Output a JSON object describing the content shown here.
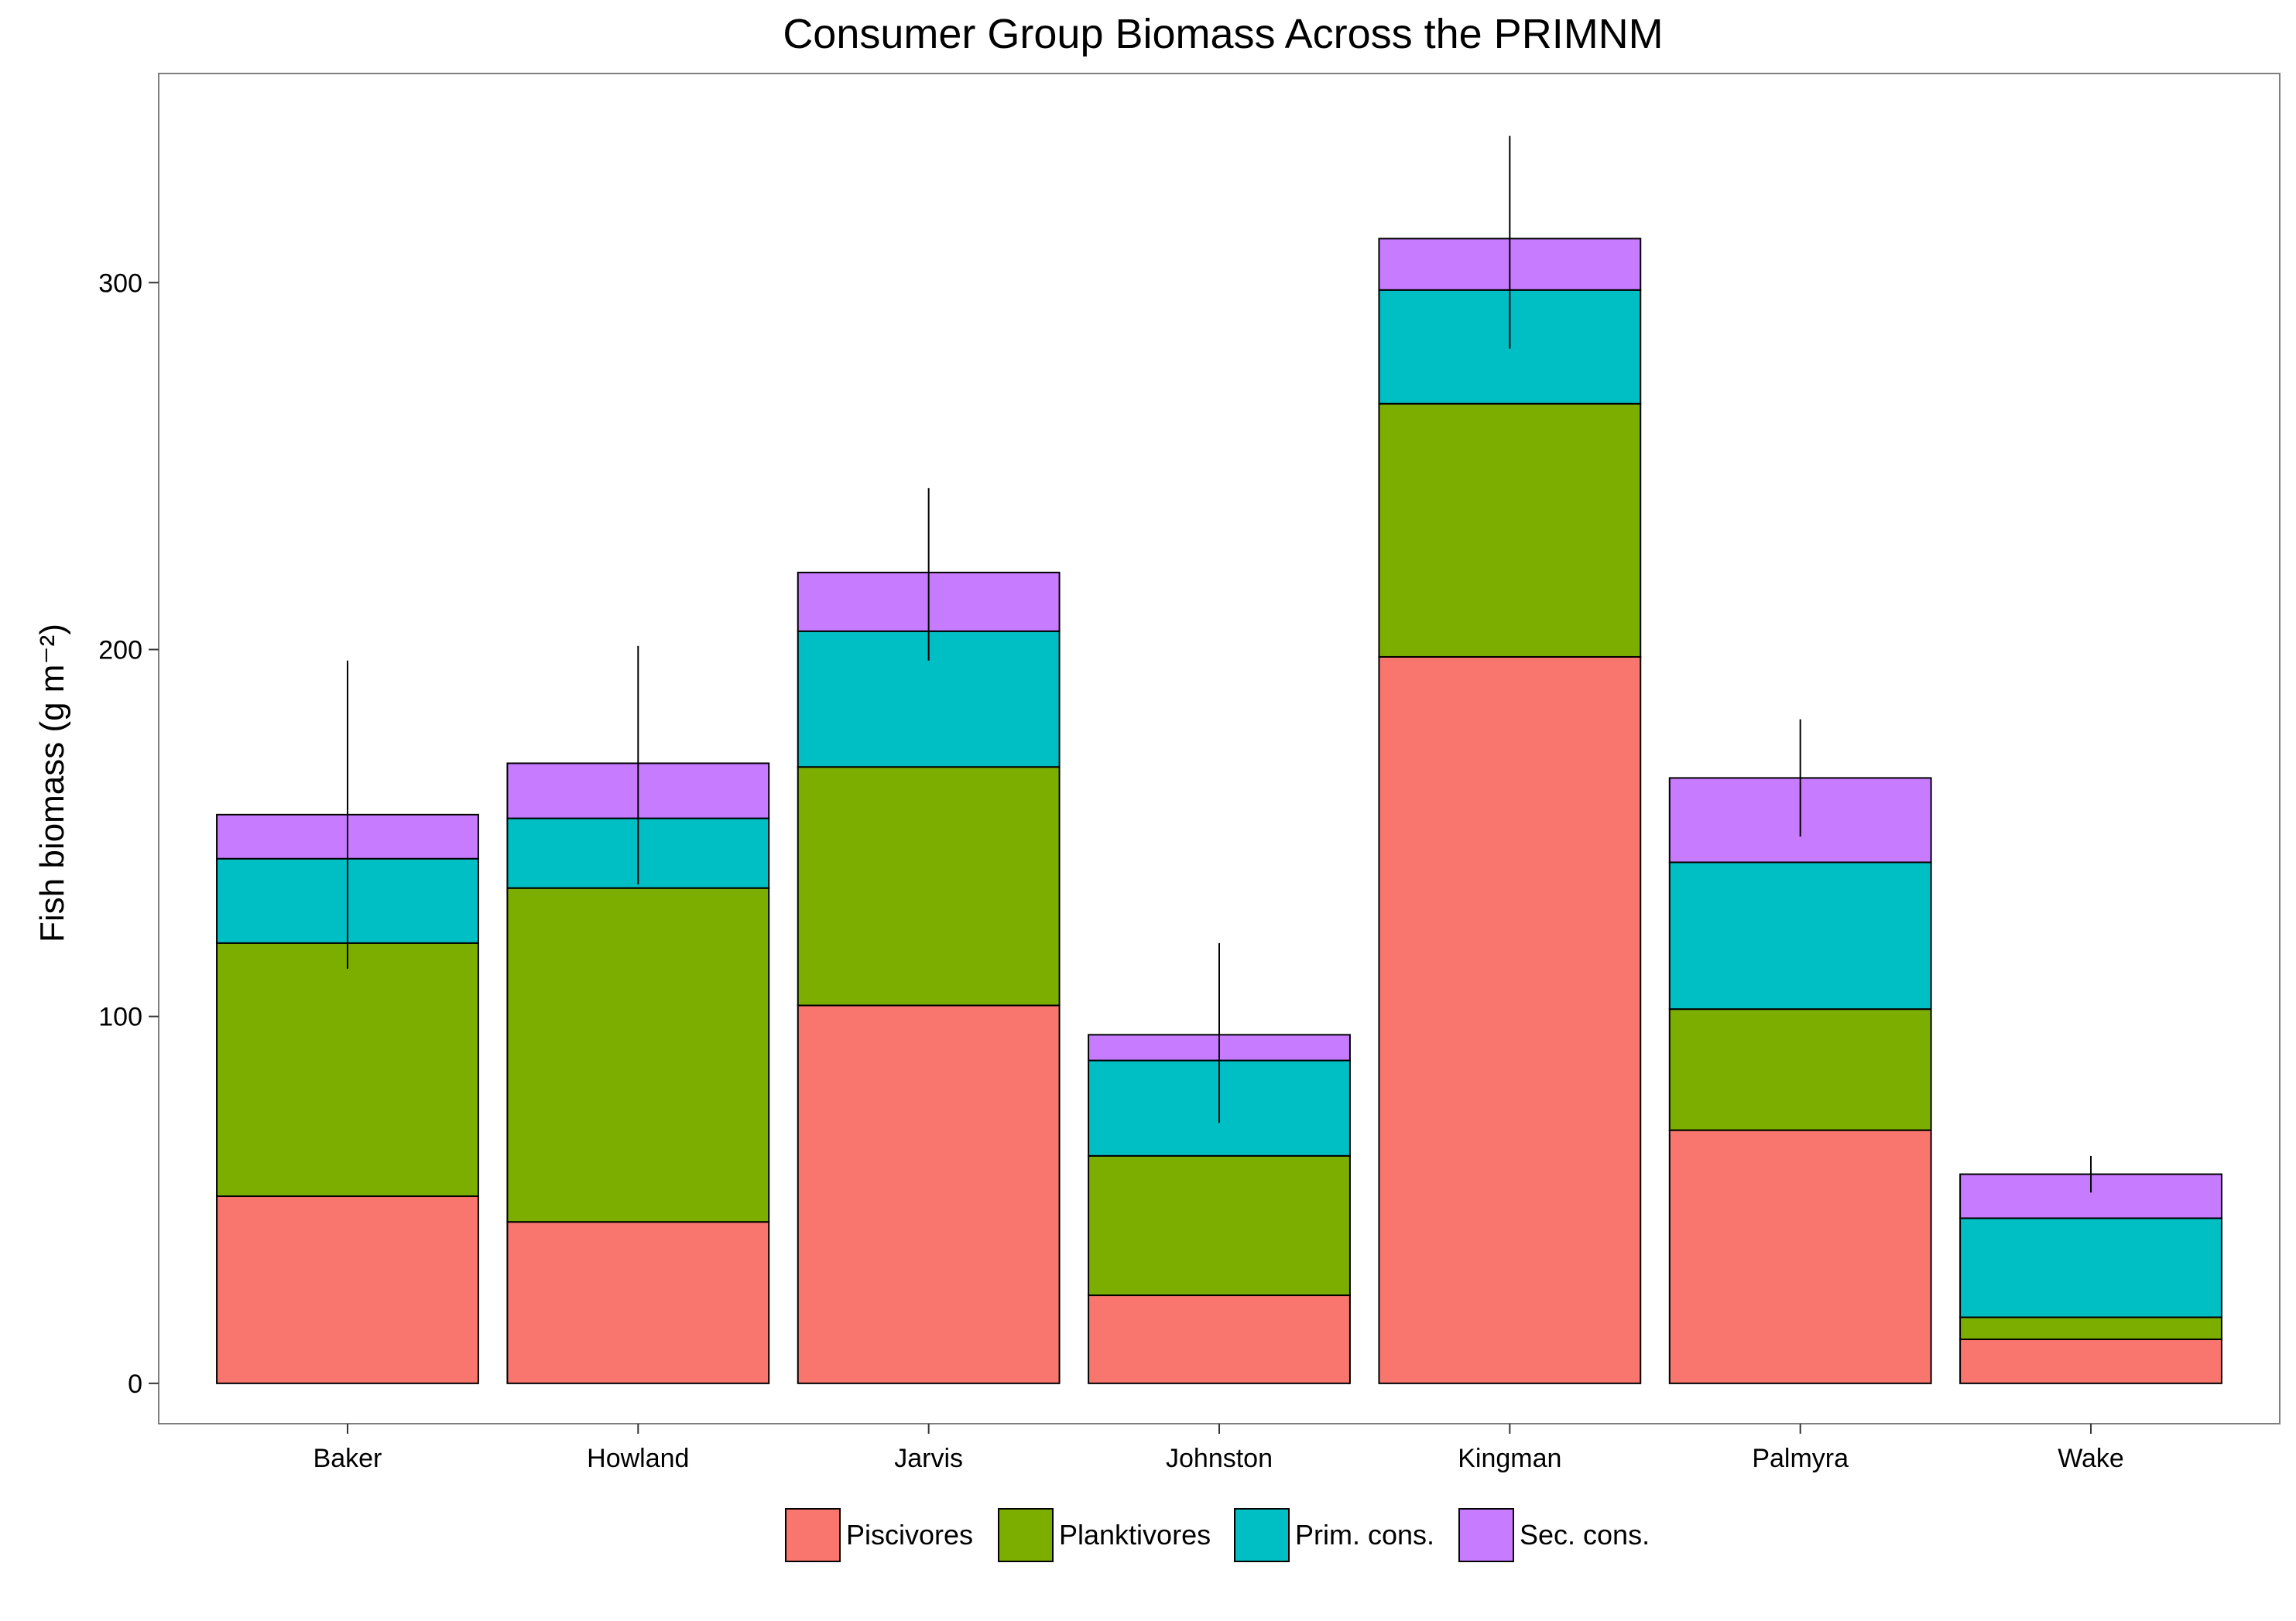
{
  "chart_data": {
    "type": "bar",
    "stacked": true,
    "title": "Consumer Group Biomass Across the PRIMNM",
    "xlabel": "",
    "ylabel": "Fish biomass (g m⁻²)",
    "ylim": [
      -11,
      357
    ],
    "yticks": [
      0,
      100,
      200,
      300
    ],
    "grid": false,
    "legend_position": "bottom",
    "categories": [
      "Baker",
      "Howland",
      "Jarvis",
      "Johnston",
      "Kingman",
      "Palmyra",
      "Wake"
    ],
    "series": [
      {
        "name": "Piscivores",
        "color": "#F8766D",
        "values": [
          51,
          44,
          103,
          24,
          198,
          69,
          12
        ]
      },
      {
        "name": "Planktivores",
        "color": "#7CAE00",
        "values": [
          69,
          91,
          65,
          38,
          69,
          33,
          6
        ]
      },
      {
        "name": "Prim. cons.",
        "color": "#00BFC4",
        "values": [
          23,
          19,
          37,
          26,
          31,
          40,
          27
        ]
      },
      {
        "name": "Sec. cons.",
        "color": "#C77CFF",
        "values": [
          12,
          15,
          16,
          7,
          14,
          23,
          12
        ]
      }
    ],
    "error_bars": [
      {
        "low": 113,
        "high": 197
      },
      {
        "low": 136,
        "high": 201
      },
      {
        "low": 197,
        "high": 244
      },
      {
        "low": 71,
        "high": 120
      },
      {
        "low": 282,
        "high": 340
      },
      {
        "low": 149,
        "high": 181
      },
      {
        "low": 52,
        "high": 62
      }
    ]
  }
}
